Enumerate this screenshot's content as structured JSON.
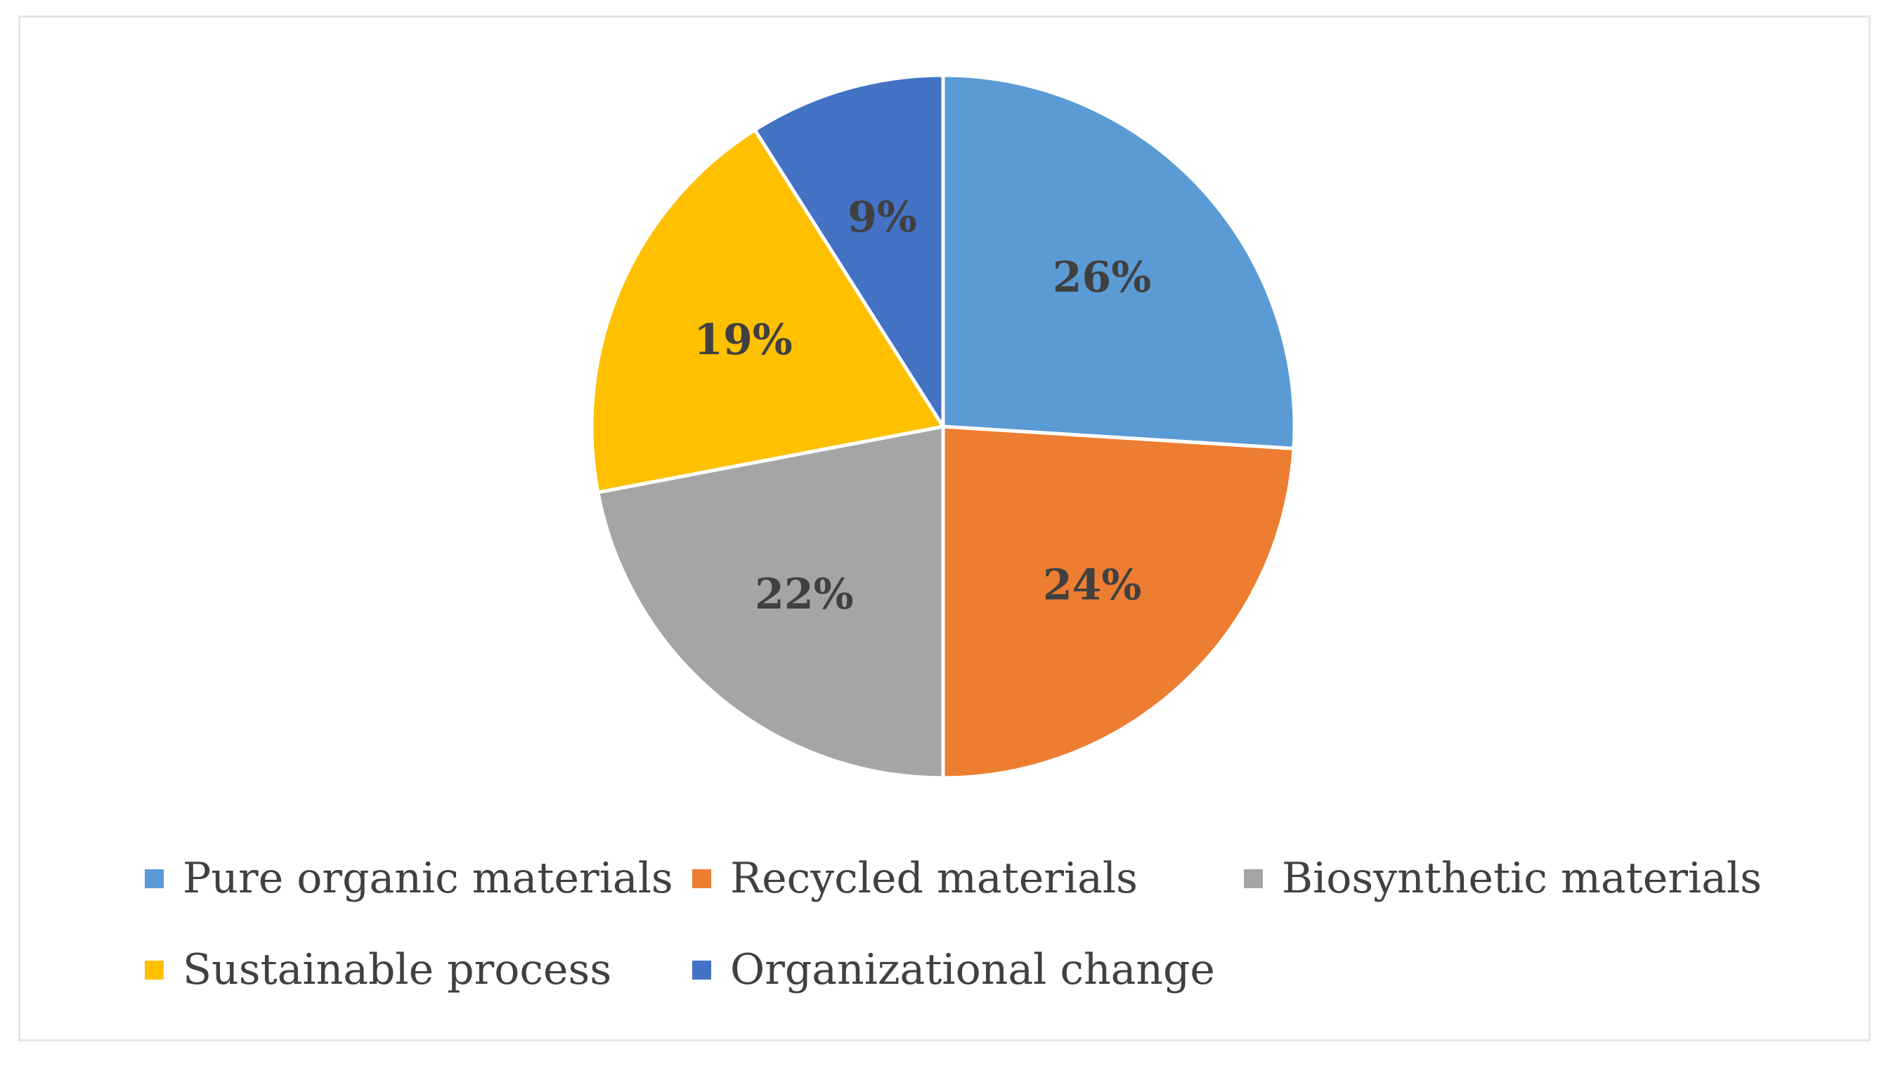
{
  "chart_data": {
    "type": "pie",
    "title": "",
    "categories": [
      "Pure organic materials",
      "Recycled materials",
      "Biosynthetic materials",
      "Sustainable process",
      "Organizational change"
    ],
    "values": [
      26,
      24,
      22,
      19,
      9
    ],
    "data_labels": [
      "26%",
      "24%",
      "22%",
      "19%",
      "9%"
    ],
    "colors": [
      "#5b9bd5",
      "#ed7d31",
      "#a5a5a5",
      "#ffc000",
      "#4472c4"
    ],
    "start_angle": "12 o'clock",
    "direction": "clockwise",
    "legend_position": "bottom"
  }
}
